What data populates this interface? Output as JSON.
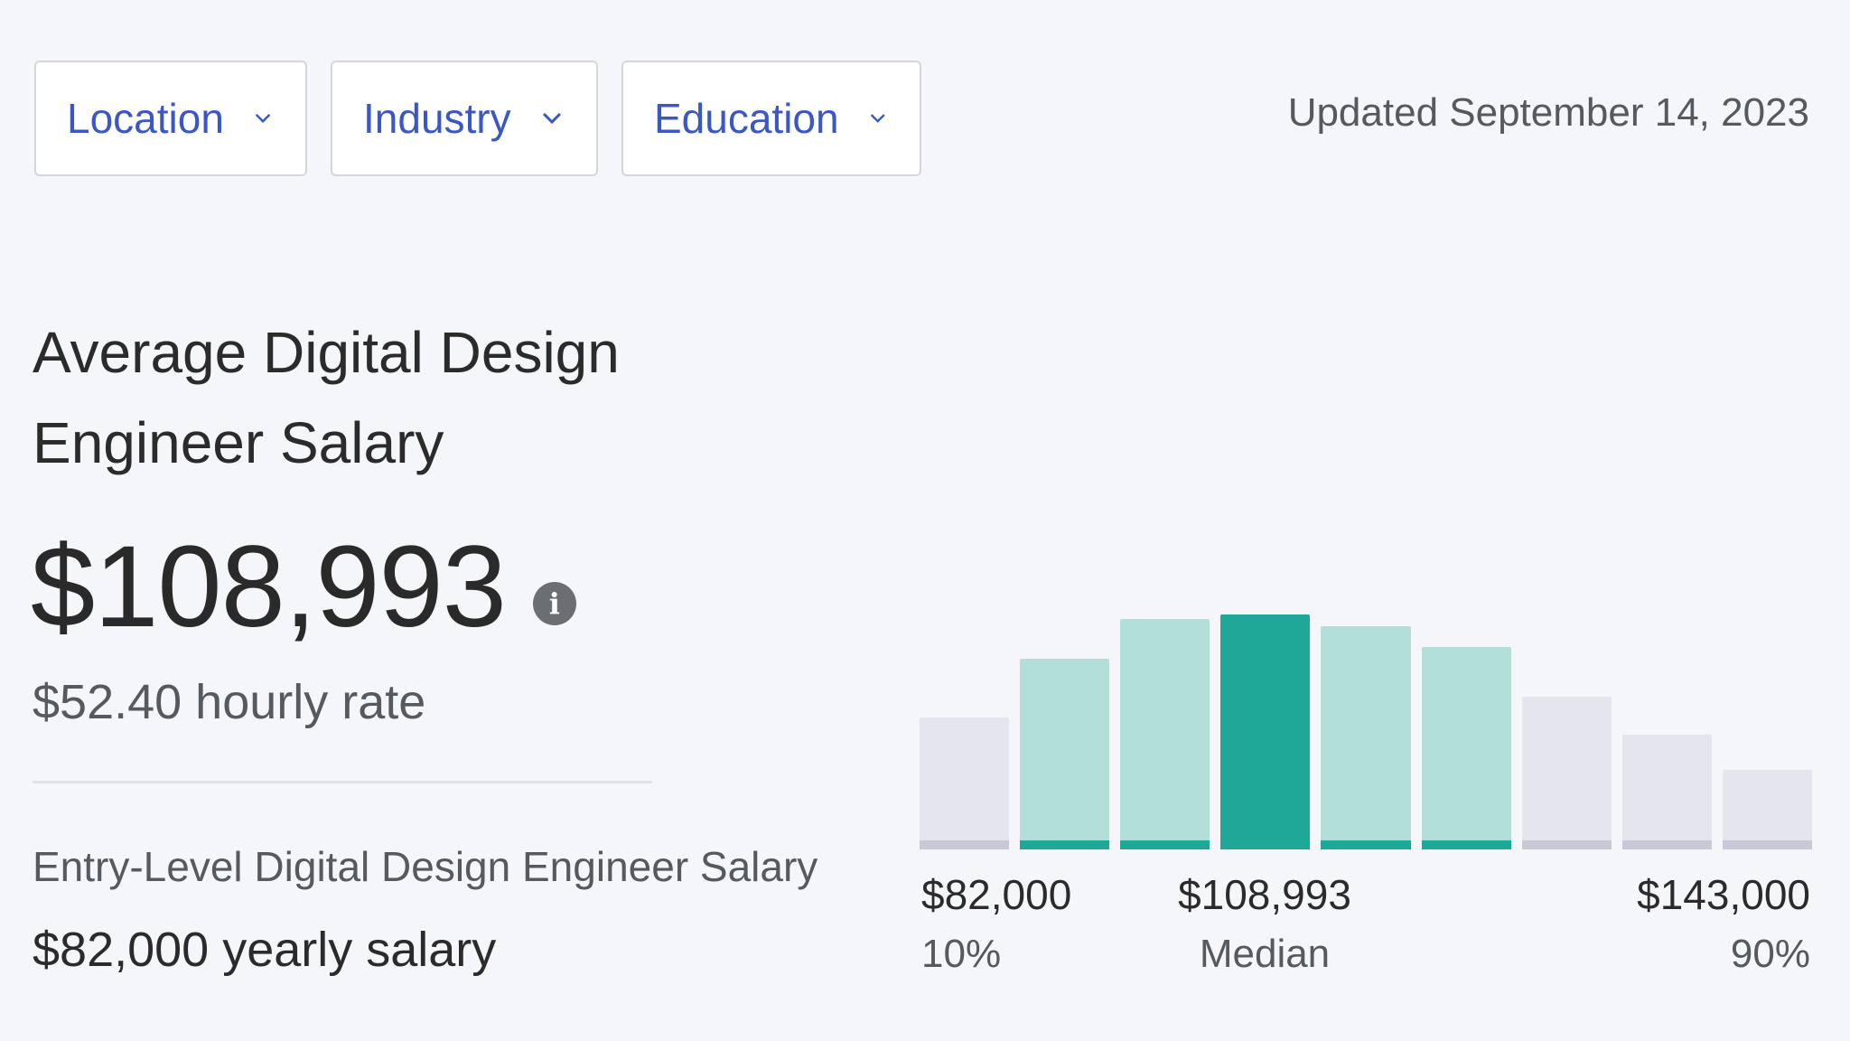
{
  "filters": {
    "location": "Location",
    "industry": "Industry",
    "education": "Education"
  },
  "updated": "Updated September 14, 2023",
  "title": {
    "line1": "Average Digital Design",
    "line2": "Engineer Salary"
  },
  "salary": "$108,993",
  "hourly": "$52.40 hourly rate",
  "entry": {
    "label": "Entry-Level Digital Design Engineer Salary",
    "value": "$82,000 yearly salary"
  },
  "distribution": {
    "bars": [
      {
        "value": 0.56,
        "kind": "outer"
      },
      {
        "value": 0.81,
        "kind": "inner"
      },
      {
        "value": 0.98,
        "kind": "inner"
      },
      {
        "value": 1.0,
        "kind": "median"
      },
      {
        "value": 0.95,
        "kind": "inner"
      },
      {
        "value": 0.86,
        "kind": "inner"
      },
      {
        "value": 0.65,
        "kind": "outer"
      },
      {
        "value": 0.49,
        "kind": "outer"
      },
      {
        "value": 0.34,
        "kind": "outer"
      }
    ],
    "low": {
      "value": "$82,000",
      "pct": "10%"
    },
    "median": {
      "value": "$108,993",
      "pct": "Median"
    },
    "high": {
      "value": "$143,000",
      "pct": "90%"
    }
  },
  "colors": {
    "outer": "#e4e5ee",
    "outer_base": "#c7c9d6",
    "inner": "#b3dfdb",
    "inner_base": "#1fa898",
    "median": "#1fa898",
    "link": "#3b57c4"
  }
}
